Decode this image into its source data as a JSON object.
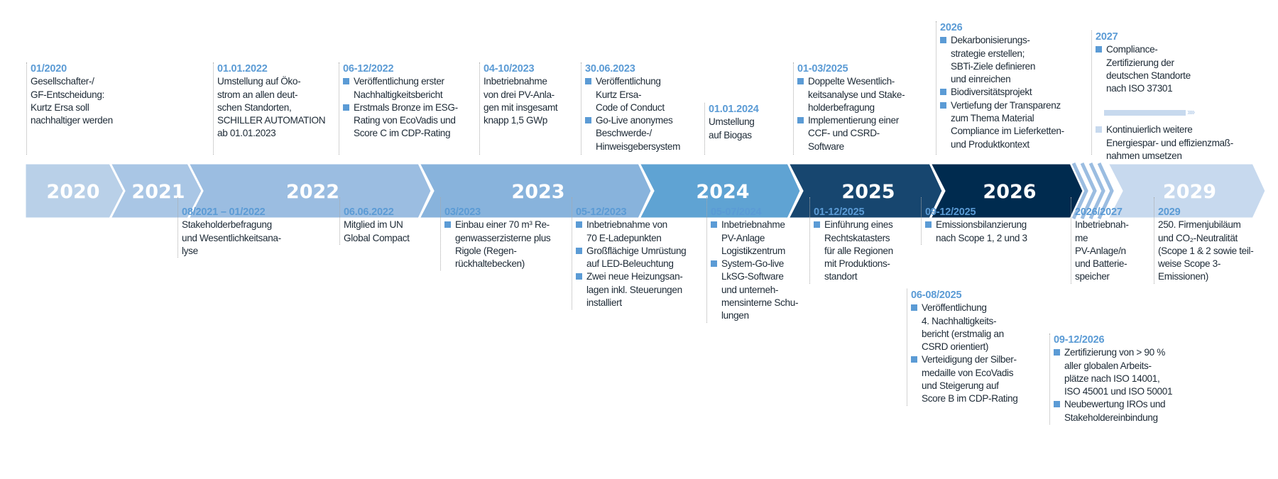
{
  "colors": {
    "accent": "#5b9bd5",
    "text": "#1d2a36",
    "y2020": "#b9d0e8",
    "y2021": "#a9c6e5",
    "y2022": "#9bbde1",
    "y2023": "#88b3dc",
    "y2024": "#5fa3d3",
    "y2025": "#17466f",
    "y2026": "#002b4f",
    "y2029": "#c7d9ee"
  },
  "years": [
    "2020",
    "2021",
    "2022",
    "2023",
    "2024",
    "2025",
    "2026",
    "2029"
  ],
  "top_events": [
    {
      "date": "01/2020",
      "lines": [
        "Gesellschafter-/",
        "GF-Entscheidung:",
        "Kurtz Ersa soll",
        "nachhaltiger werden"
      ]
    },
    {
      "date": "01.01.2022",
      "lines": [
        "Umstellung auf Öko-",
        "strom an allen deut-",
        "schen Standorten,",
        "SCHILLER AUTOMATION",
        "ab 01.01.2023"
      ]
    },
    {
      "date": "06-12/2022",
      "bullets": [
        [
          "Veröffentlichung erster",
          "Nachhaltigkeitsbericht"
        ],
        [
          "Erstmals Bronze im ESG-",
          "Rating von EcoVadis und",
          "Score C im CDP-Rating"
        ]
      ]
    },
    {
      "date": "04-10/2023",
      "lines": [
        "Inbetriebnahme",
        "von drei PV-Anla-",
        "gen mit insgesamt",
        "knapp 1,5 GWp"
      ]
    },
    {
      "date": "30.06.2023",
      "bullets": [
        [
          "Veröffentlichung",
          "Kurtz Ersa-",
          "Code of Conduct"
        ],
        [
          "Go-Live anonymes",
          "Beschwerde-/",
          "Hinweisgebersystem"
        ]
      ]
    },
    {
      "date": "01.01.2024",
      "lines": [
        "Umstellung",
        "auf Biogas"
      ]
    },
    {
      "date": "01-03/2025",
      "bullets": [
        [
          "Doppelte Wesentlich-",
          "keitsanalyse und Stake-",
          "holderbefragung"
        ],
        [
          "Implementierung einer",
          "CCF- und CSRD-",
          " Software"
        ]
      ]
    },
    {
      "date": "2026",
      "bullets": [
        [
          "Dekarbonisierungs-",
          "strategie erstellen;",
          "SBTi-Ziele definieren",
          "und einreichen"
        ],
        [
          "Biodiversitätsprojekt"
        ],
        [
          "Vertiefung der Transparenz",
          "zum Thema Material",
          "Compliance im Lieferketten-",
          "und Produktkontext"
        ]
      ]
    },
    {
      "date": "2027",
      "bullets": [
        [
          "Compliance-",
          "Zertifizierung der",
          "deutschen Standorte",
          "nach ISO 37301"
        ]
      ]
    }
  ],
  "continuous": {
    "arrows": "››››",
    "lines": [
      "Kontinuierlich weitere",
      "Energiespar- und effizienzmaß-",
      "nahmen umsetzen"
    ]
  },
  "bottom_events": [
    {
      "date": "08/2021 – 01/2022",
      "lines": [
        "Stakeholderbefragung",
        "und Wesentlichkeitsana-",
        "lyse"
      ]
    },
    {
      "date": "06.06.2022",
      "lines": [
        "Mitglied im UN",
        "Global Compact"
      ]
    },
    {
      "date": "03/2023",
      "bullets": [
        [
          "Einbau einer 70 m³ Re-",
          "genwasserzisterne plus",
          "Rigole (Regen-",
          "rückhaltebecken)"
        ]
      ]
    },
    {
      "date": "05-12/2023",
      "bullets": [
        [
          "Inbetriebnahme von",
          "70 E-Ladepunkten"
        ],
        [
          "Großflächige Umrüstung",
          "auf LED-Beleuchtung"
        ],
        [
          "Zwei neue Heizungsan-",
          "lagen inkl. Steuerungen",
          "installiert"
        ]
      ]
    },
    {
      "date": "05-07/2024",
      "bullets": [
        [
          "Inbetriebnahme",
          "PV-Anlage",
          "Logistikzentrum"
        ],
        [
          "System-Go-live",
          "LkSG-Software",
          "und unterneh-",
          "mensinterne Schu-",
          "lungen"
        ]
      ]
    },
    {
      "date": "01-12/2025",
      "bullets": [
        [
          "Einführung eines",
          "Rechtskatasters",
          "für alle Regionen",
          "mit Produktions-",
          "standort"
        ]
      ]
    },
    {
      "date": "09-12/2025",
      "bullets": [
        [
          "Emissionsbilanzierung",
          "nach Scope 1, 2 und 3"
        ]
      ]
    },
    {
      "date": "06-08/2025",
      "bullets": [
        [
          "Veröffentlichung",
          "4. Nachhaltigkeits-",
          "bericht (erstmalig an",
          "CSRD orientiert)"
        ],
        [
          "Verteidigung der Silber-",
          "medaille von EcoVadis",
          "und Steigerung auf",
          "Score B im CDP-Rating"
        ]
      ]
    },
    {
      "date": "2026/2027",
      "lines": [
        "Inbetriebnah-",
        "me",
        "PV-Anlage/n",
        "und Batterie-",
        "speicher"
      ]
    },
    {
      "date": "2029",
      "lines": [
        "250. Firmenjubiläum",
        "und CO₂-Neutralität",
        "(Scope 1 & 2 sowie teil-",
        "weise Scope 3-",
        "Emissionen)"
      ]
    },
    {
      "date": "09-12/2026",
      "bullets": [
        [
          "Zertifizierung von > 90 %",
          "aller globalen Arbeits-",
          "plätze nach ISO 14001,",
          "ISO 45001 und ISO 50001"
        ],
        [
          "Neubewertung IROs und",
          "Stakeholdereinbindung"
        ]
      ]
    }
  ]
}
